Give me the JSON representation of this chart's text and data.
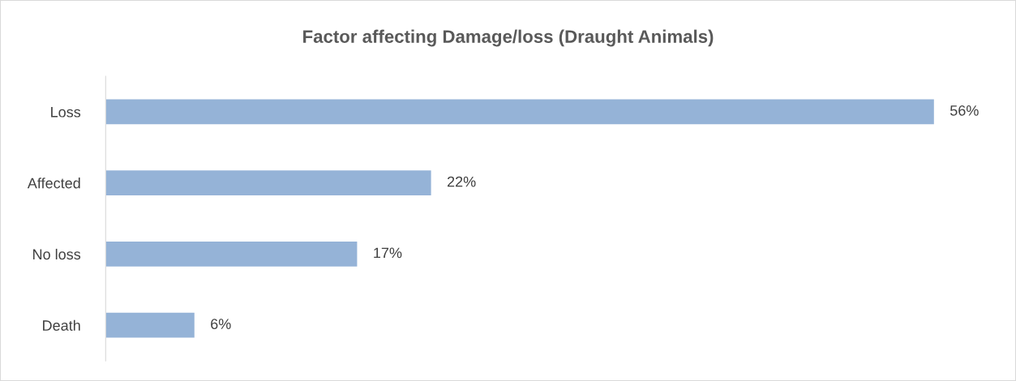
{
  "chart_data": {
    "type": "bar",
    "orientation": "horizontal",
    "title": "Factor affecting Damage/loss (Draught Animals)",
    "categories": [
      "Loss",
      "Affected",
      "No loss",
      "Death"
    ],
    "values": [
      56,
      22,
      17,
      6
    ],
    "value_labels": [
      "56%",
      "22%",
      "17%",
      "6%"
    ],
    "color": "#95b3d7",
    "grid": false,
    "legend": false,
    "tick_labels": "y"
  }
}
